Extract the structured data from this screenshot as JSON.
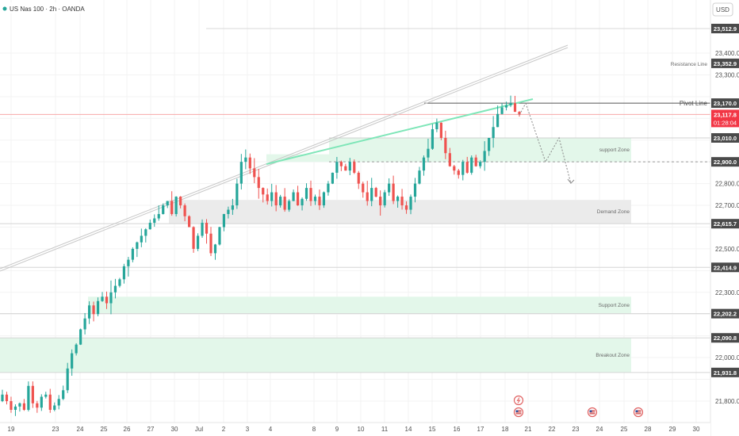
{
  "header": {
    "symbol": "US Nas 100 · 2h · OANDA",
    "currency": "USD"
  },
  "colors": {
    "up": "#26a69a",
    "down": "#ef5350",
    "zone_green": "#e3f7ea",
    "zone_gray": "#ebebeb",
    "grid": "#f3f3f3",
    "price_badge": "#f23645",
    "level_badge": "#4a4a4a",
    "rising_line": "#7ee6b8",
    "channel": "#c8c8c8"
  },
  "chart_data": {
    "type": "candlestick",
    "ylim": [
      21732,
      23540
    ],
    "x_ticks": [
      "19",
      "23",
      "24",
      "25",
      "26",
      "27",
      "30",
      "Jul",
      "2",
      "3",
      "4",
      "8",
      "9",
      "10",
      "11",
      "14",
      "15",
      "16",
      "17",
      "18",
      "21",
      "22",
      "23",
      "24",
      "25",
      "28",
      "29",
      "30"
    ],
    "y_ticks": [
      21800,
      21900,
      22000,
      22100,
      22200,
      22300,
      22400,
      22500,
      22600,
      22700,
      22800,
      22900,
      23000,
      23100,
      23200,
      23300,
      23400
    ],
    "current_price": {
      "value": "23,117.8",
      "countdown": "01:28:04"
    },
    "levels": [
      {
        "label": "Resistance Line",
        "value": 23352.9,
        "value_text": "23,352.9"
      },
      {
        "label": "Pivot Line",
        "value": 23170.0,
        "value_text": "23,170.0"
      },
      {
        "label": "",
        "value": 23512.9,
        "value_text": "23,512.9"
      },
      {
        "label": "",
        "value": 23010.0,
        "value_text": "23,010.0"
      },
      {
        "label": "",
        "value": 22900.0,
        "value_text": "22,900.0"
      },
      {
        "label": "",
        "value": 22615.7,
        "value_text": "22,615.7"
      },
      {
        "label": "",
        "value": 22414.9,
        "value_text": "22,414.9"
      },
      {
        "label": "",
        "value": 22202.2,
        "value_text": "22,202.2"
      },
      {
        "label": "",
        "value": 22090.8,
        "value_text": "22,090.8"
      },
      {
        "label": "",
        "value": 21931.8,
        "value_text": "21,931.8"
      }
    ],
    "zones": [
      {
        "label": "support Zone",
        "top": 23010,
        "bottom": 22900,
        "kind": "green"
      },
      {
        "label": "Demand Zone",
        "top": 22725,
        "bottom": 22615.7,
        "kind": "gray"
      },
      {
        "label": "Support Zone",
        "top": 22280,
        "bottom": 22202.2,
        "kind": "green"
      },
      {
        "label": "Breakout Zone",
        "top": 22090.8,
        "bottom": 21931.8,
        "kind": "green"
      }
    ],
    "projection": [
      23170,
      22900,
      23010,
      22800
    ],
    "close_path": [
      21830,
      21800,
      21760,
      21775,
      21790,
      21760,
      21870,
      21790,
      21770,
      21820,
      21830,
      21760,
      21780,
      21810,
      21850,
      21950,
      22020,
      22060,
      22130,
      22180,
      22240,
      22200,
      22260,
      22280,
      22250,
      22300,
      22330,
      22360,
      22420,
      22450,
      22500,
      22530,
      22560,
      22590,
      22620,
      22640,
      22660,
      22700,
      22720,
      22660,
      22740,
      22700,
      22650,
      22600,
      22500,
      22560,
      22620,
      22570,
      22480,
      22520,
      22600,
      22660,
      22680,
      22700,
      22800,
      22900,
      22920,
      22870,
      22830,
      22780,
      22750,
      22720,
      22760,
      22700,
      22740,
      22680,
      22720,
      22760,
      22700,
      22730,
      22780,
      22720,
      22740,
      22700,
      22760,
      22800,
      22850,
      22900,
      22880,
      22860,
      22900,
      22850,
      22800,
      22760,
      22720,
      22780,
      22740,
      22700,
      22760,
      22800,
      22720,
      22740,
      22700,
      22680,
      22740,
      22800,
      22860,
      22920,
      22960,
      23050,
      23080,
      23010,
      22940,
      22880,
      22860,
      22840,
      22900,
      22850,
      22920,
      22880,
      22900,
      22950,
      23010,
      23060,
      23120,
      23150,
      23160,
      23170,
      23130,
      23117.8
    ]
  },
  "events": [
    {
      "icon": "lightning-icon",
      "x_index": 0
    },
    {
      "icon": "us-flag-icon",
      "x_index": 0
    },
    {
      "icon": "us-flag-icon",
      "x_index": 1
    },
    {
      "icon": "us-flag-icon",
      "x_index": 2
    }
  ]
}
